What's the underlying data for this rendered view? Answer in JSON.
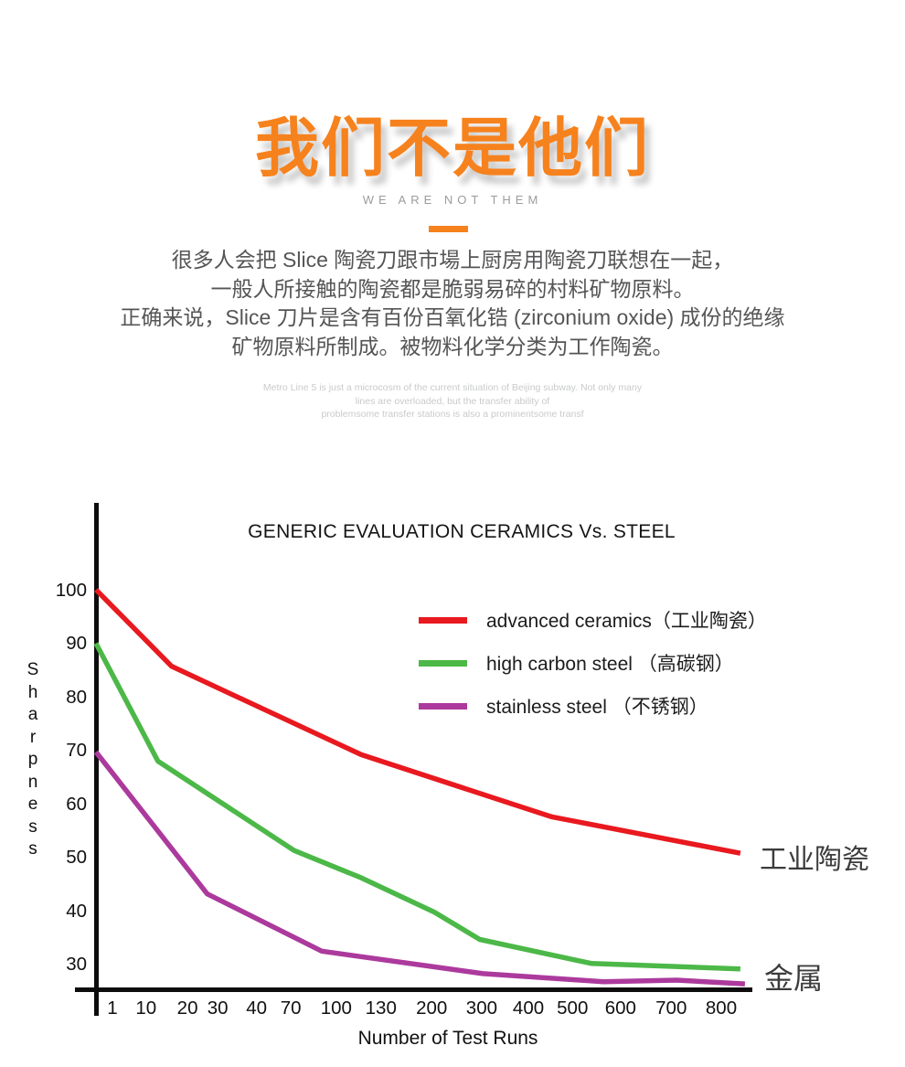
{
  "header": {
    "title": "我们不是他们",
    "subtitle": "WE ARE NOT THEM",
    "accent_color": "#f6821e",
    "paragraph_lines": [
      "很多人会把 Slice 陶瓷刀跟市場上厨房用陶瓷刀联想在一起，",
      "一般人所接触的陶瓷都是脆弱易碎的村料矿物原料。",
      "正确来说，Slice 刀片是含有百份百氧化锆 (zirconium oxide) 成份的绝缘",
      "矿物原料所制成。被物料化学分类为工作陶瓷。"
    ],
    "smallprint_lines": [
      "Metro Line 5 is just a microcosm of the current situation of Beijing subway. Not only many",
      "lines are overloaded, but the transfer ability of",
      "problemsome transfer stations is also a prominentsome transf"
    ]
  },
  "chart_data": {
    "type": "line",
    "title": "GENERIC EVALUATION CERAMICS Vs. STEEL",
    "xlabel": "Number of Test Runs",
    "ylabel": "Sharpness",
    "x_categories": [
      "1",
      "10",
      "20",
      "30",
      "40",
      "70",
      "100",
      "130",
      "200",
      "300",
      "400",
      "500",
      "600",
      "700",
      "800"
    ],
    "y_ticks": [
      100,
      90,
      80,
      70,
      60,
      50,
      40,
      30
    ],
    "ylim": [
      24,
      108
    ],
    "grid": false,
    "legend_position": "upper-right-inside",
    "axis_color": "#0d0d0d",
    "series": [
      {
        "name": "advanced ceramics（工业陶瓷）",
        "color": "#e8191f",
        "values": [
          100,
          90,
          85,
          82,
          78,
          75,
          71,
          68,
          65,
          62,
          59,
          57,
          55,
          53,
          51
        ],
        "path_points": [
          [
            0,
            100
          ],
          [
            0.115,
            85.7
          ],
          [
            0.403,
            69.2
          ],
          [
            0.692,
            57.6
          ],
          [
            0.979,
            50.8
          ]
        ]
      },
      {
        "name": "high carbon steel （高碳钢）",
        "color": "#4cb848",
        "values": [
          90,
          72,
          65,
          62,
          58,
          52,
          48,
          44,
          40,
          35,
          33,
          31,
          30,
          30,
          29
        ],
        "path_points": [
          [
            0,
            90
          ],
          [
            0.094,
            68
          ],
          [
            0.301,
            51.3
          ],
          [
            0.403,
            46.2
          ],
          [
            0.514,
            39.8
          ],
          [
            0.583,
            34.7
          ],
          [
            0.753,
            30.2
          ],
          [
            0.979,
            29.2
          ]
        ]
      },
      {
        "name": "stainless steel （不锈钢）",
        "color": "#ac3a9d",
        "values": [
          70,
          58,
          48,
          43,
          39,
          35,
          32,
          31,
          30,
          28,
          28,
          27,
          27,
          27,
          26.5
        ],
        "path_points": [
          [
            0,
            69.7
          ],
          [
            0.169,
            43.2
          ],
          [
            0.343,
            32.5
          ],
          [
            0.588,
            28.3
          ],
          [
            0.771,
            26.8
          ],
          [
            0.882,
            27.1
          ],
          [
            0.986,
            26.4
          ]
        ]
      }
    ],
    "annotations": [
      {
        "text": "工业陶瓷"
      },
      {
        "text": "金属"
      }
    ]
  }
}
